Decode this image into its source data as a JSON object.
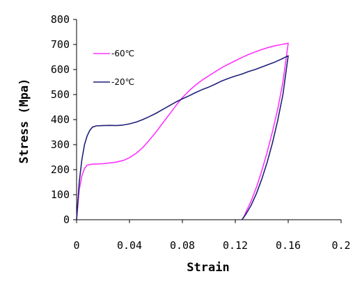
{
  "chart_data": {
    "type": "line",
    "xlabel": "Strain",
    "ylabel": "Stress (Mpa)",
    "xlim": [
      0,
      0.2
    ],
    "ylim": [
      0,
      800
    ],
    "x_ticks": [
      "0",
      "0.04",
      "0.08",
      "0.12",
      "0.16",
      "0.2"
    ],
    "y_ticks": [
      "0",
      "100",
      "200",
      "300",
      "400",
      "500",
      "600",
      "700",
      "800"
    ],
    "grid": false,
    "legend_position": "top-left",
    "series": [
      {
        "name": "-60℃",
        "color": "#ff33ff",
        "x": [
          0,
          0.002,
          0.004,
          0.006,
          0.008,
          0.012,
          0.02,
          0.03,
          0.036,
          0.04,
          0.045,
          0.05,
          0.055,
          0.06,
          0.065,
          0.07,
          0.075,
          0.08,
          0.085,
          0.09,
          0.095,
          0.1,
          0.105,
          0.11,
          0.115,
          0.12,
          0.125,
          0.13,
          0.135,
          0.14,
          0.145,
          0.15,
          0.155,
          0.16,
          0.156,
          0.152,
          0.148,
          0.144,
          0.14,
          0.136,
          0.132,
          0.128,
          0.126
        ],
        "y": [
          0,
          120,
          175,
          205,
          218,
          222,
          224,
          230,
          238,
          248,
          265,
          288,
          318,
          350,
          385,
          420,
          455,
          488,
          515,
          538,
          558,
          575,
          592,
          608,
          622,
          635,
          648,
          660,
          670,
          680,
          688,
          695,
          700,
          705,
          550,
          440,
          350,
          268,
          195,
          130,
          75,
          30,
          5
        ]
      },
      {
        "name": "-20℃",
        "color": "#1f1f7a",
        "x": [
          0,
          0.002,
          0.004,
          0.006,
          0.008,
          0.01,
          0.012,
          0.015,
          0.02,
          0.025,
          0.03,
          0.035,
          0.04,
          0.045,
          0.05,
          0.055,
          0.06,
          0.065,
          0.07,
          0.075,
          0.08,
          0.085,
          0.09,
          0.095,
          0.1,
          0.105,
          0.11,
          0.115,
          0.12,
          0.125,
          0.13,
          0.135,
          0.14,
          0.145,
          0.15,
          0.155,
          0.16,
          0.156,
          0.152,
          0.148,
          0.144,
          0.14,
          0.136,
          0.132,
          0.128,
          0.125
        ],
        "y": [
          0,
          150,
          240,
          300,
          335,
          357,
          370,
          375,
          376,
          377,
          376,
          378,
          383,
          390,
          400,
          412,
          425,
          440,
          455,
          470,
          483,
          495,
          508,
          520,
          530,
          542,
          555,
          565,
          574,
          582,
          592,
          600,
          610,
          620,
          630,
          642,
          655,
          500,
          395,
          305,
          228,
          162,
          105,
          58,
          22,
          0
        ]
      }
    ]
  }
}
